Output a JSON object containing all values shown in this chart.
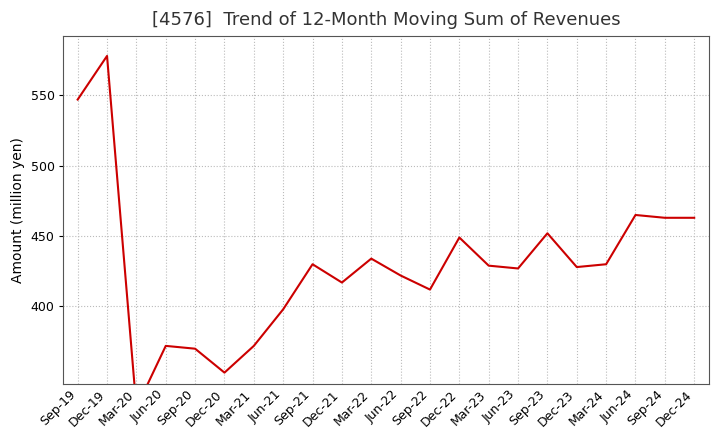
{
  "title": "[4576]  Trend of 12-Month Moving Sum of Revenues",
  "ylabel": "Amount (million yen)",
  "line_color": "#CC0000",
  "background_color": "#FFFFFF",
  "grid_color": "#BBBBBB",
  "x_labels": [
    "Sep-19",
    "Dec-19",
    "Mar-20",
    "Jun-20",
    "Sep-20",
    "Dec-20",
    "Mar-21",
    "Jun-21",
    "Sep-21",
    "Dec-21",
    "Mar-22",
    "Jun-22",
    "Sep-22",
    "Dec-22",
    "Mar-23",
    "Jun-23",
    "Sep-23",
    "Dec-23",
    "Mar-24",
    "Jun-24",
    "Sep-24",
    "Dec-24"
  ],
  "y_values": [
    547,
    578,
    328,
    372,
    370,
    353,
    372,
    398,
    430,
    417,
    434,
    422,
    412,
    449,
    429,
    427,
    452,
    428,
    430,
    465,
    463,
    463
  ],
  "ylim_min": 345,
  "ylim_max": 592,
  "yticks": [
    400,
    450,
    500,
    550
  ],
  "title_fontsize": 13,
  "label_fontsize": 10,
  "tick_fontsize": 9
}
